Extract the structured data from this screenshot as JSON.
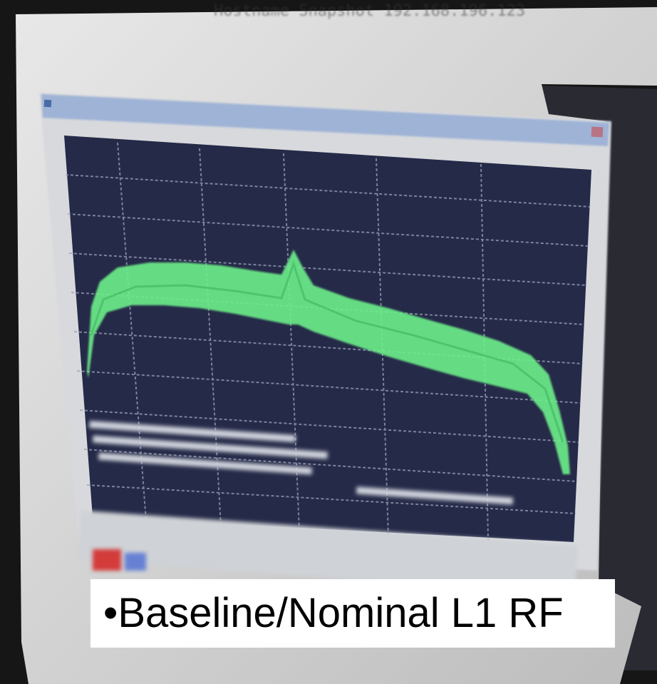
{
  "photo": {
    "top_overlay_text": "Hostname Snapshot 192.168.196.123",
    "trace_color": "#6df08a",
    "screen_bg": "#252a48",
    "grid_color": "#9aa0b8"
  },
  "caption": {
    "bullet": "•",
    "text": "Baseline/Nominal L1 RF"
  },
  "icons": [
    "window-icon",
    "close-icon"
  ]
}
